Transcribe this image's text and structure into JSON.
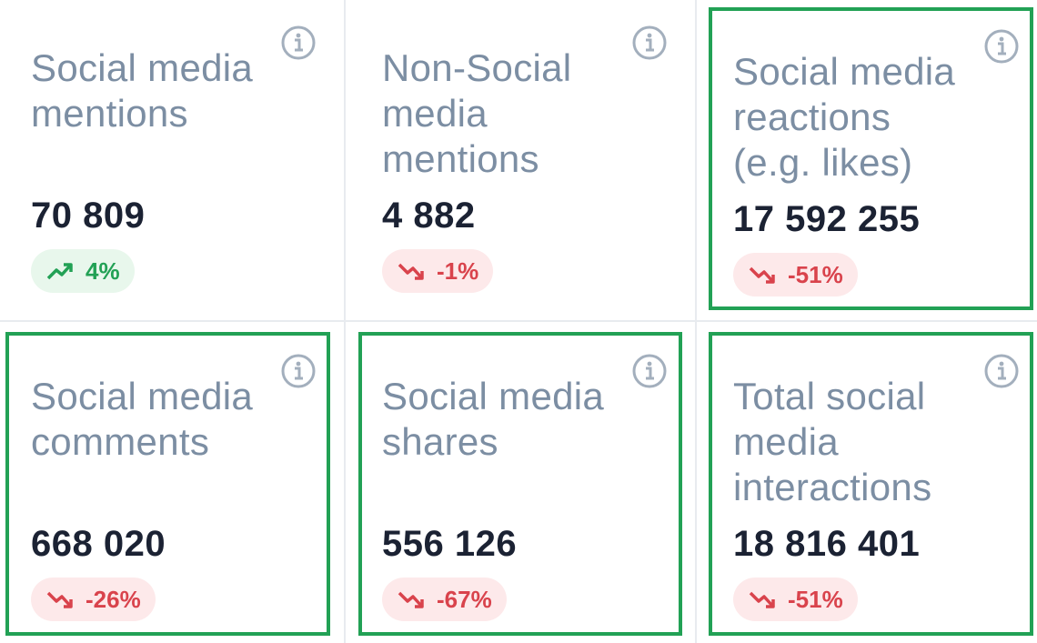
{
  "cards": [
    {
      "title_lines": [
        "Social media",
        "mentions"
      ],
      "value": "70 809",
      "change": "4%",
      "trend": "up",
      "highlighted": false
    },
    {
      "title_lines": [
        "Non-Social",
        "media",
        "mentions"
      ],
      "value": "4 882",
      "change": "-1%",
      "trend": "down",
      "highlighted": false
    },
    {
      "title_lines": [
        "Social media",
        "reactions",
        "(e.g. likes)"
      ],
      "value": "17 592 255",
      "change": "-51%",
      "trend": "down",
      "highlighted": true
    },
    {
      "title_lines": [
        "Social media",
        "comments"
      ],
      "value": "668 020",
      "change": "-26%",
      "trend": "down",
      "highlighted": true
    },
    {
      "title_lines": [
        "Social media",
        "shares"
      ],
      "value": "556 126",
      "change": "-67%",
      "trend": "down",
      "highlighted": true
    },
    {
      "title_lines": [
        "Total social",
        "media",
        "interactions"
      ],
      "value": "18 816 401",
      "change": "-51%",
      "trend": "down",
      "highlighted": true
    }
  ],
  "icons": {
    "info": "info-icon",
    "up": "trending-up-icon",
    "down": "trending-down-icon"
  },
  "colors": {
    "highlight_border": "#22a155",
    "positive": "#22a155",
    "negative": "#d9434c",
    "title": "#7c8ea3",
    "value": "#1b2233"
  }
}
